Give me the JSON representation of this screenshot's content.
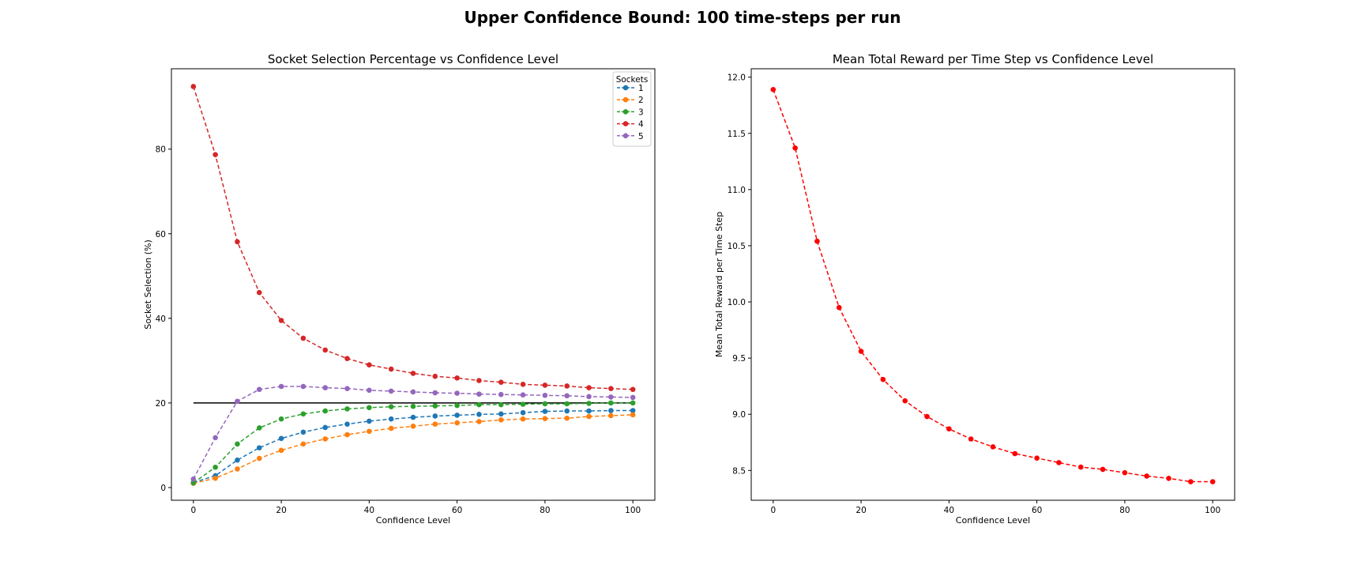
{
  "figure": {
    "title": "Upper Confidence Bound: 100 time-steps per run"
  },
  "chart_data": [
    {
      "type": "line",
      "title": "Socket Selection Percentage vs Confidence Level",
      "xlabel": "Confidence Level",
      "ylabel": "Socket Selection (%)",
      "xlim": [
        -5,
        105
      ],
      "ylim": [
        -3,
        99
      ],
      "xticks": [
        0,
        20,
        40,
        60,
        80,
        100
      ],
      "yticks": [
        0,
        20,
        40,
        60,
        80
      ],
      "legend": {
        "title": "Sockets",
        "placement": "top-right"
      },
      "x": [
        0,
        5,
        10,
        15,
        20,
        25,
        30,
        35,
        40,
        45,
        50,
        55,
        60,
        65,
        70,
        75,
        80,
        85,
        90,
        95,
        100
      ],
      "series": [
        {
          "name": "1",
          "color": "#1f77b4",
          "style": "dashed-marker",
          "values": [
            1.2,
            2.8,
            6.5,
            9.4,
            11.6,
            13.1,
            14.2,
            15.0,
            15.7,
            16.2,
            16.6,
            16.9,
            17.1,
            17.3,
            17.4,
            17.7,
            18.0,
            18.1,
            18.1,
            18.2,
            18.2
          ]
        },
        {
          "name": "2",
          "color": "#ff7f0e",
          "style": "dashed-marker",
          "values": [
            1.0,
            2.2,
            4.4,
            6.9,
            8.8,
            10.3,
            11.5,
            12.5,
            13.3,
            14.0,
            14.5,
            15.0,
            15.3,
            15.6,
            16.0,
            16.2,
            16.3,
            16.4,
            16.8,
            17.0,
            17.2
          ]
        },
        {
          "name": "3",
          "color": "#2ca02c",
          "style": "dashed-marker",
          "values": [
            1.1,
            4.8,
            10.3,
            14.1,
            16.2,
            17.4,
            18.1,
            18.6,
            18.9,
            19.1,
            19.2,
            19.3,
            19.4,
            19.6,
            19.6,
            19.7,
            19.8,
            19.8,
            19.9,
            20.0,
            20.0
          ]
        },
        {
          "name": "4",
          "color": "#d62728",
          "style": "dashed-marker",
          "values": [
            94.8,
            78.7,
            58.1,
            46.1,
            39.5,
            35.3,
            32.5,
            30.5,
            29.0,
            28.0,
            27.0,
            26.3,
            25.9,
            25.3,
            24.9,
            24.4,
            24.2,
            24.0,
            23.6,
            23.4,
            23.2
          ]
        },
        {
          "name": "5",
          "color": "#9467bd",
          "style": "dashed-marker",
          "values": [
            2.0,
            11.8,
            20.4,
            23.2,
            23.9,
            23.9,
            23.6,
            23.4,
            23.0,
            22.8,
            22.6,
            22.4,
            22.3,
            22.1,
            22.0,
            21.9,
            21.8,
            21.7,
            21.5,
            21.4,
            21.3
          ]
        }
      ],
      "reference_line": {
        "y": 20,
        "x_from": 0,
        "x_to": 100,
        "color": "#000000"
      }
    },
    {
      "type": "line",
      "title": "Mean Total Reward per Time Step vs Confidence Level",
      "xlabel": "Confidence Level",
      "ylabel": "Mean Total Reward per Time Step",
      "xlim": [
        -5,
        105
      ],
      "ylim": [
        8.235,
        12.075
      ],
      "xticks": [
        0,
        20,
        40,
        60,
        80,
        100
      ],
      "yticks": [
        8.5,
        9.0,
        9.5,
        10.0,
        10.5,
        11.0,
        11.5,
        12.0
      ],
      "x": [
        0,
        5,
        10,
        15,
        20,
        25,
        30,
        35,
        40,
        45,
        50,
        55,
        60,
        65,
        70,
        75,
        80,
        85,
        90,
        95,
        100
      ],
      "series": [
        {
          "color": "#ff0000",
          "style": "dashed-marker",
          "values": [
            11.89,
            11.37,
            10.54,
            9.95,
            9.56,
            9.31,
            9.12,
            8.98,
            8.87,
            8.78,
            8.71,
            8.65,
            8.61,
            8.57,
            8.53,
            8.51,
            8.48,
            8.45,
            8.43,
            8.4,
            8.4
          ]
        }
      ]
    }
  ]
}
